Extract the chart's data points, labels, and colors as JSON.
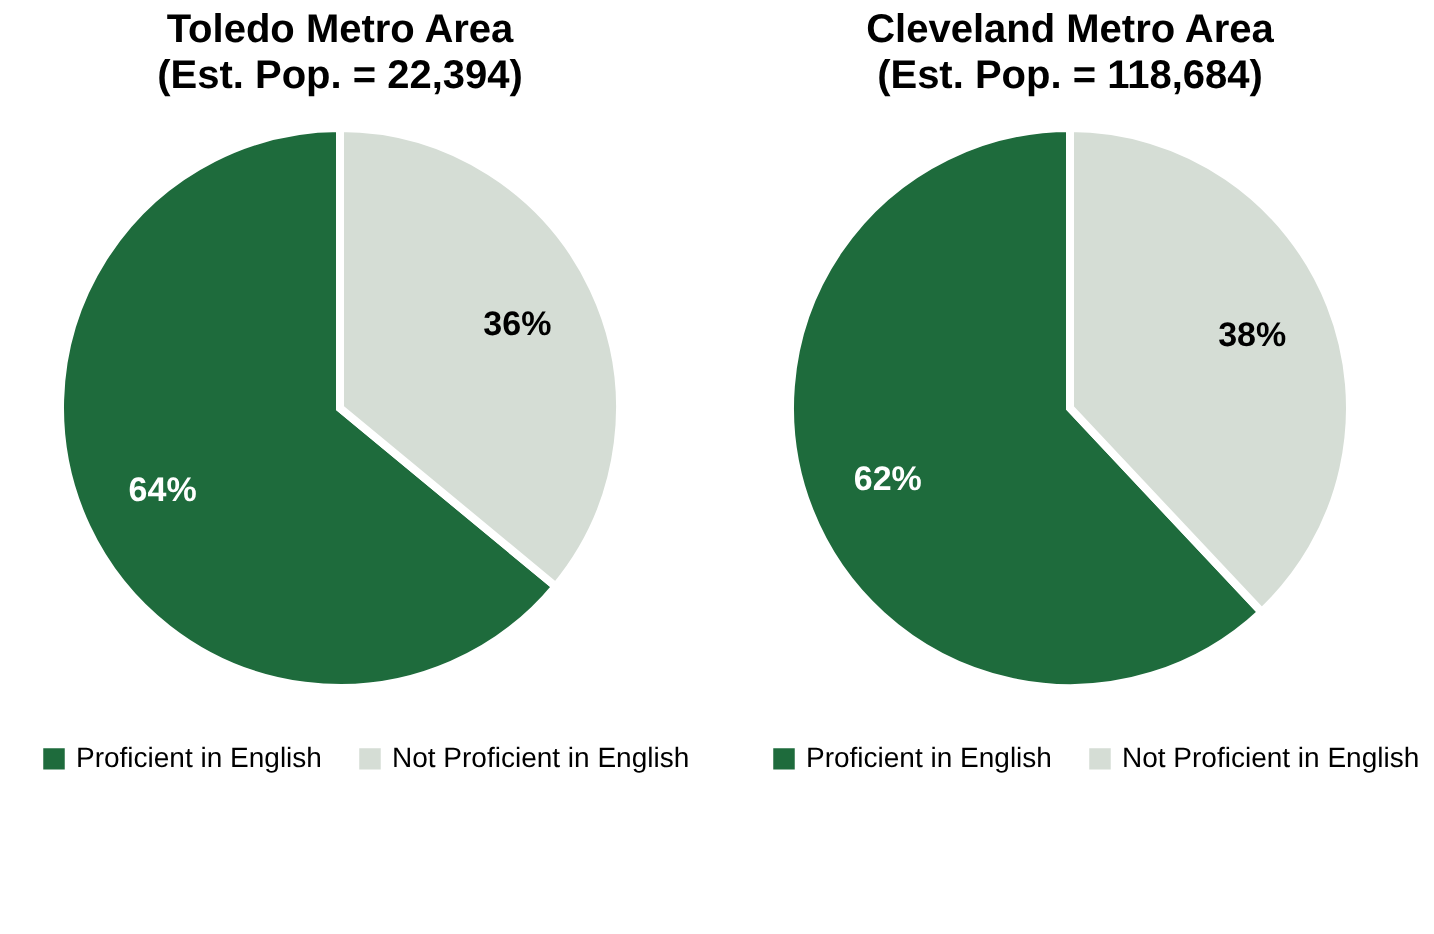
{
  "chart_data": [
    {
      "type": "pie",
      "title": "Toledo Metro Area",
      "subtitle": "(Est. Pop. = 22,394)",
      "categories": [
        "Proficient in English",
        "Not Proficient in English"
      ],
      "values": [
        64,
        36
      ],
      "colors": [
        "#1e6b3c",
        "#d5ddd5"
      ],
      "value_labels": [
        "64%",
        "36%"
      ],
      "legend": "bottom"
    },
    {
      "type": "pie",
      "title": "Cleveland Metro Area",
      "subtitle": "(Est. Pop. = 118,684)",
      "categories": [
        "Proficient in English",
        "Not Proficient in English"
      ],
      "values": [
        62,
        38
      ],
      "colors": [
        "#1e6b3c",
        "#d5ddd5"
      ],
      "value_labels": [
        "62%",
        "38%"
      ],
      "legend": "bottom"
    }
  ]
}
